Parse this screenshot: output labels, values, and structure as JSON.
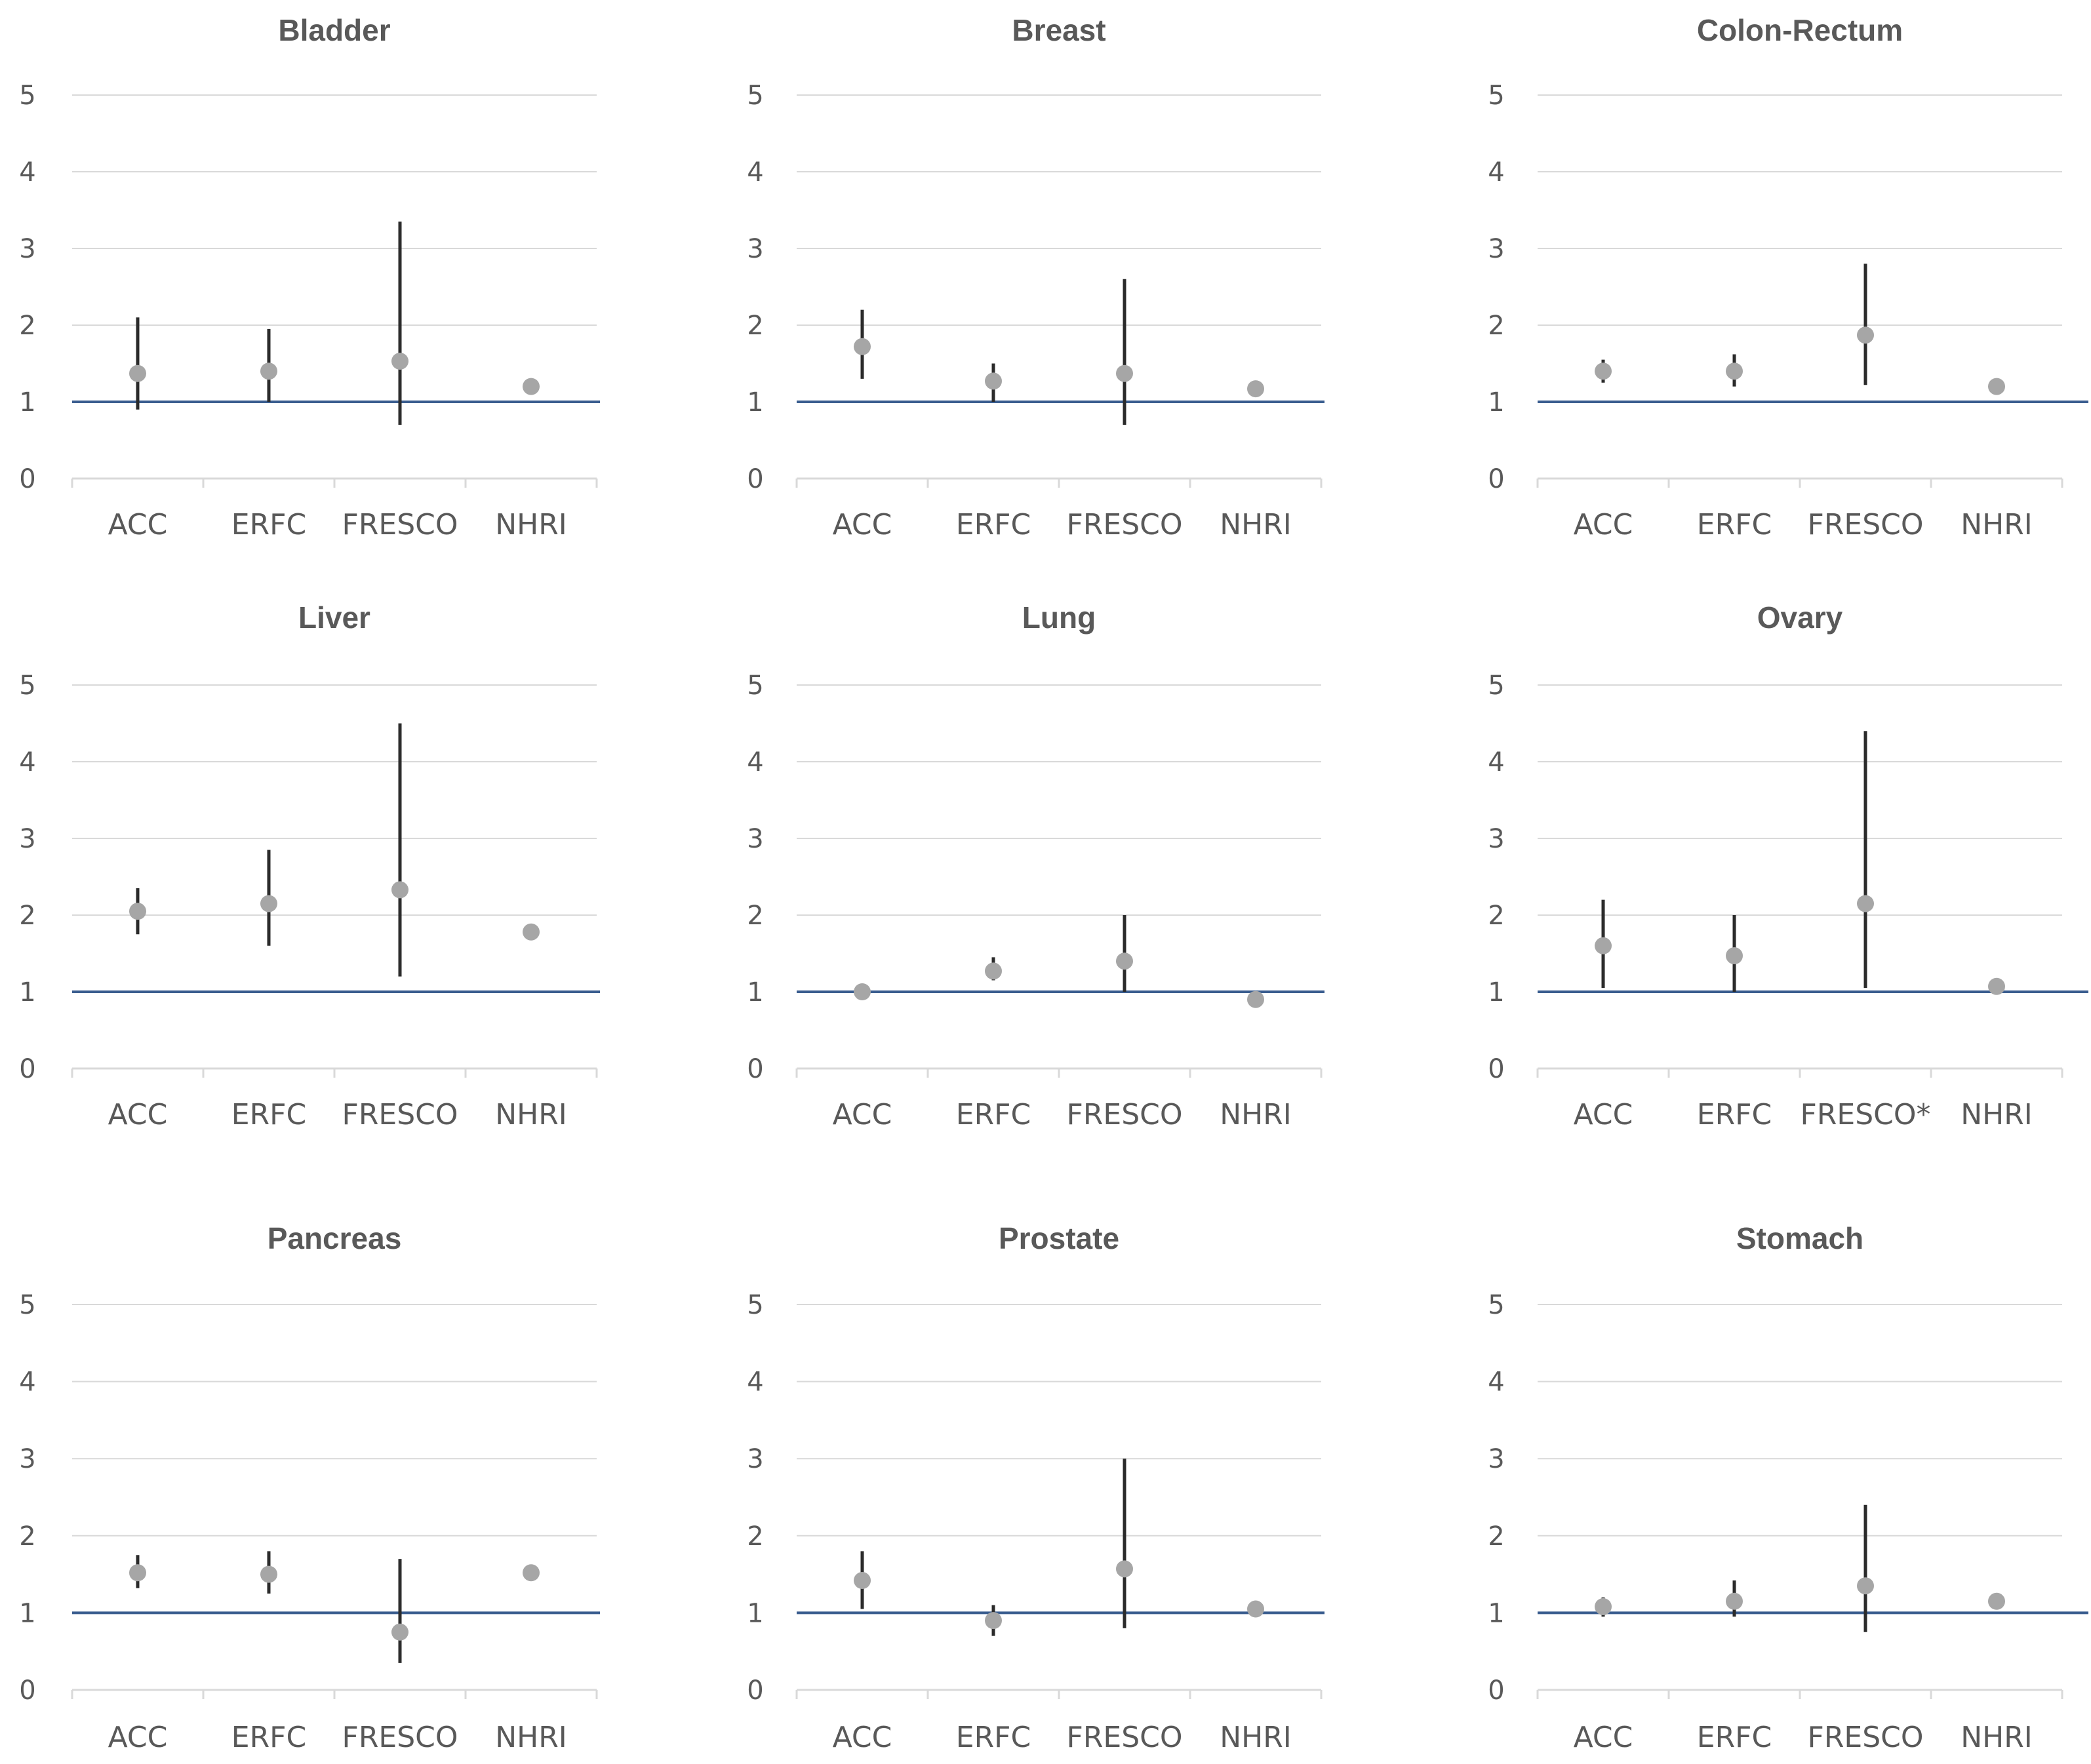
{
  "colors": {
    "point": "#a6a6a6",
    "ci": "#2b2b2b",
    "reference": "#3a5d8f",
    "grid": "#d9d9d9",
    "text": "#595959"
  },
  "chart_data": [
    {
      "type": "scatter",
      "title": "Bladder",
      "categories": [
        "ACC",
        "ERFC",
        "FRESCO",
        "NHRI"
      ],
      "yticks": [
        "0",
        "1",
        "2",
        "3",
        "4",
        "5"
      ],
      "ylim": [
        0,
        5
      ],
      "reference_y": 1,
      "points": [
        {
          "category": "ACC",
          "value": 1.37,
          "lower": 0.9,
          "upper": 2.1
        },
        {
          "category": "ERFC",
          "value": 1.4,
          "lower": 1.0,
          "upper": 1.95
        },
        {
          "category": "FRESCO",
          "value": 1.53,
          "lower": 0.7,
          "upper": 3.35
        },
        {
          "category": "NHRI",
          "value": 1.2,
          "lower": null,
          "upper": null
        }
      ]
    },
    {
      "type": "scatter",
      "title": "Breast",
      "categories": [
        "ACC",
        "ERFC",
        "FRESCO",
        "NHRI"
      ],
      "yticks": [
        "0",
        "1",
        "2",
        "3",
        "4",
        "5"
      ],
      "ylim": [
        0,
        5
      ],
      "reference_y": 1,
      "points": [
        {
          "category": "ACC",
          "value": 1.72,
          "lower": 1.3,
          "upper": 2.2
        },
        {
          "category": "ERFC",
          "value": 1.27,
          "lower": 1.0,
          "upper": 1.5
        },
        {
          "category": "FRESCO",
          "value": 1.37,
          "lower": 0.7,
          "upper": 2.6
        },
        {
          "category": "NHRI",
          "value": 1.17,
          "lower": null,
          "upper": null
        }
      ]
    },
    {
      "type": "scatter",
      "title": "Colon-Rectum",
      "categories": [
        "ACC",
        "ERFC",
        "FRESCO",
        "NHRI"
      ],
      "yticks": [
        "0",
        "1",
        "2",
        "3",
        "4",
        "5"
      ],
      "ylim": [
        0,
        5
      ],
      "reference_y": 1,
      "points": [
        {
          "category": "ACC",
          "value": 1.4,
          "lower": 1.25,
          "upper": 1.55
        },
        {
          "category": "ERFC",
          "value": 1.4,
          "lower": 1.2,
          "upper": 1.62
        },
        {
          "category": "FRESCO",
          "value": 1.87,
          "lower": 1.22,
          "upper": 2.8
        },
        {
          "category": "NHRI",
          "value": 1.2,
          "lower": null,
          "upper": null
        }
      ]
    },
    {
      "type": "scatter",
      "title": "Liver",
      "categories": [
        "ACC",
        "ERFC",
        "FRESCO",
        "NHRI"
      ],
      "yticks": [
        "0",
        "1",
        "2",
        "3",
        "4",
        "5"
      ],
      "ylim": [
        0,
        5
      ],
      "reference_y": 1,
      "points": [
        {
          "category": "ACC",
          "value": 2.05,
          "lower": 1.75,
          "upper": 2.35
        },
        {
          "category": "ERFC",
          "value": 2.15,
          "lower": 1.6,
          "upper": 2.85
        },
        {
          "category": "FRESCO",
          "value": 2.33,
          "lower": 1.2,
          "upper": 4.5
        },
        {
          "category": "NHRI",
          "value": 1.78,
          "lower": null,
          "upper": null
        }
      ]
    },
    {
      "type": "scatter",
      "title": "Lung",
      "categories": [
        "ACC",
        "ERFC",
        "FRESCO",
        "NHRI"
      ],
      "yticks": [
        "0",
        "1",
        "2",
        "3",
        "4",
        "5"
      ],
      "ylim": [
        0,
        5
      ],
      "reference_y": 1,
      "points": [
        {
          "category": "ACC",
          "value": 1.0,
          "lower": null,
          "upper": null
        },
        {
          "category": "ERFC",
          "value": 1.27,
          "lower": 1.15,
          "upper": 1.45
        },
        {
          "category": "FRESCO",
          "value": 1.4,
          "lower": 1.0,
          "upper": 2.0
        },
        {
          "category": "NHRI",
          "value": 0.9,
          "lower": null,
          "upper": null
        }
      ]
    },
    {
      "type": "scatter",
      "title": "Ovary",
      "categories": [
        "ACC",
        "ERFC",
        "FRESCO*",
        "NHRI"
      ],
      "yticks": [
        "0",
        "1",
        "2",
        "3",
        "4",
        "5"
      ],
      "ylim": [
        0,
        5
      ],
      "reference_y": 1,
      "points": [
        {
          "category": "ACC",
          "value": 1.6,
          "lower": 1.05,
          "upper": 2.2
        },
        {
          "category": "ERFC",
          "value": 1.47,
          "lower": 1.0,
          "upper": 2.0
        },
        {
          "category": "FRESCO*",
          "value": 2.15,
          "lower": 1.05,
          "upper": 4.4
        },
        {
          "category": "NHRI",
          "value": 1.07,
          "lower": null,
          "upper": null
        }
      ]
    },
    {
      "type": "scatter",
      "title": "Pancreas",
      "categories": [
        "ACC",
        "ERFC",
        "FRESCO",
        "NHRI"
      ],
      "yticks": [
        "0",
        "1",
        "2",
        "3",
        "4",
        "5"
      ],
      "ylim": [
        0,
        5
      ],
      "reference_y": 1,
      "points": [
        {
          "category": "ACC",
          "value": 1.52,
          "lower": 1.32,
          "upper": 1.75
        },
        {
          "category": "ERFC",
          "value": 1.5,
          "lower": 1.25,
          "upper": 1.8
        },
        {
          "category": "FRESCO",
          "value": 0.75,
          "lower": 0.35,
          "upper": 1.7
        },
        {
          "category": "NHRI",
          "value": 1.52,
          "lower": null,
          "upper": null
        }
      ]
    },
    {
      "type": "scatter",
      "title": "Prostate",
      "categories": [
        "ACC",
        "ERFC",
        "FRESCO",
        "NHRI"
      ],
      "yticks": [
        "0",
        "1",
        "2",
        "3",
        "4",
        "5"
      ],
      "ylim": [
        0,
        5
      ],
      "reference_y": 1,
      "points": [
        {
          "category": "ACC",
          "value": 1.42,
          "lower": 1.05,
          "upper": 1.8
        },
        {
          "category": "ERFC",
          "value": 0.9,
          "lower": 0.7,
          "upper": 1.1
        },
        {
          "category": "FRESCO",
          "value": 1.57,
          "lower": 0.8,
          "upper": 3.0
        },
        {
          "category": "NHRI",
          "value": 1.05,
          "lower": null,
          "upper": null
        }
      ]
    },
    {
      "type": "scatter",
      "title": "Stomach",
      "categories": [
        "ACC",
        "ERFC",
        "FRESCO",
        "NHRI"
      ],
      "yticks": [
        "0",
        "1",
        "2",
        "3",
        "4",
        "5"
      ],
      "ylim": [
        0,
        5
      ],
      "reference_y": 1,
      "points": [
        {
          "category": "ACC",
          "value": 1.08,
          "lower": 0.95,
          "upper": 1.2
        },
        {
          "category": "ERFC",
          "value": 1.15,
          "lower": 0.95,
          "upper": 1.42
        },
        {
          "category": "FRESCO",
          "value": 1.35,
          "lower": 0.75,
          "upper": 2.4
        },
        {
          "category": "NHRI",
          "value": 1.15,
          "lower": null,
          "upper": null
        }
      ]
    }
  ]
}
